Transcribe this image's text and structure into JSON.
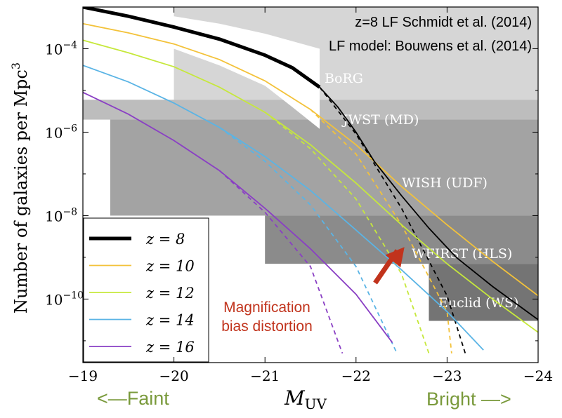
{
  "chart_data": {
    "type": "line",
    "title_lines": [
      "z=8 LF Schmidt et al. (2014)",
      "LF model: Bouwens et al. (2014)"
    ],
    "xlabel_main": "M",
    "xlabel_sub": "UV",
    "ylabel": "Number of galaxies per Mpc",
    "ylabel_sup": "3",
    "x_range": [
      -19,
      -24
    ],
    "y_scale": "log",
    "y_range": [
      3e-12,
      0.001
    ],
    "x_ticks": [
      {
        "value": -19,
        "label": "−19"
      },
      {
        "value": -20,
        "label": "−20"
      },
      {
        "value": -21,
        "label": "−21"
      },
      {
        "value": -22,
        "label": "−22"
      },
      {
        "value": -23,
        "label": "−23"
      },
      {
        "value": -24,
        "label": "−24"
      }
    ],
    "y_ticks": [
      {
        "value": 0.0001,
        "base": "10",
        "exp": "−4"
      },
      {
        "value": 1e-06,
        "base": "10",
        "exp": "−6"
      },
      {
        "value": 1e-08,
        "base": "10",
        "exp": "−8"
      },
      {
        "value": 1e-10,
        "base": "10",
        "exp": "−10"
      }
    ],
    "survey_regions": [
      {
        "label": "BoRG",
        "x": [
          -20.0,
          -24.0
        ],
        "y": [
          6e-06,
          0.001
        ],
        "color": "#d6d6d6",
        "label_color": "#ffffff"
      },
      {
        "label": "JWST (MD)",
        "x": [
          -19.0,
          -24.0
        ],
        "y": [
          2e-06,
          6e-06
        ],
        "color": "#bdbdbd",
        "label_color": "#ffffff"
      },
      {
        "label": "WISH (UDF)",
        "x": [
          -19.3,
          -24.0
        ],
        "y": [
          1e-08,
          2e-06
        ],
        "color": "#a3a3a3",
        "label_color": "#ffffff"
      },
      {
        "label": "WFIRST (HLS)",
        "x": [
          -21.0,
          -24.0
        ],
        "y": [
          7e-10,
          1e-08
        ],
        "color": "#8b8b8b",
        "label_color": "#ffffff"
      },
      {
        "label": "Euclid (WS)",
        "x": [
          -22.8,
          -24.0
        ],
        "y": [
          3e-11,
          7e-10
        ],
        "color": "#747474",
        "label_color": "#ffffff"
      }
    ],
    "series": [
      {
        "name": "z = 8",
        "color": "#000000",
        "x": [
          -19.0,
          -19.5,
          -20.0,
          -20.5,
          -21.0,
          -21.3,
          -21.6,
          -21.8,
          -22.0,
          -22.2,
          -22.5,
          -22.8,
          -23.1,
          -23.5,
          -24.0
        ],
        "y": [
          0.001,
          0.0006,
          0.00033,
          0.00017,
          7e-05,
          3.5e-05,
          1.2e-05,
          4e-06,
          1e-06,
          2e-07,
          3e-08,
          5e-09,
          1e-09,
          2e-10,
          3.2e-11
        ]
      },
      {
        "name": "z = 10",
        "color": "#f3c23a",
        "x": [
          -19.0,
          -19.5,
          -20.0,
          -20.5,
          -21.0,
          -21.5,
          -22.0,
          -22.5,
          -23.0,
          -23.5,
          -24.0
        ],
        "y": [
          0.0004,
          0.00024,
          0.00013,
          5.5e-05,
          1.7e-05,
          3.5e-06,
          5e-07,
          5e-08,
          6e-09,
          8e-10,
          1.2e-10
        ]
      },
      {
        "name": "z = 12",
        "color": "#c6e83b",
        "x": [
          -19.0,
          -19.5,
          -20.0,
          -20.5,
          -21.0,
          -21.5,
          -22.0,
          -22.5,
          -23.0,
          -23.5,
          -24.0
        ],
        "y": [
          0.00016,
          8e-05,
          3.7e-05,
          1.2e-05,
          3e-06,
          5e-07,
          6e-08,
          6e-09,
          7e-10,
          1e-10,
          1.6e-11
        ]
      },
      {
        "name": "z = 14",
        "color": "#5ab4e5",
        "x": [
          -19.0,
          -19.5,
          -20.0,
          -20.5,
          -21.0,
          -21.5,
          -22.0,
          -22.5,
          -23.0,
          -23.4
        ],
        "y": [
          4e-05,
          1.6e-05,
          5e-06,
          1.3e-06,
          2.6e-07,
          4e-08,
          4.5e-09,
          5e-10,
          5e-11,
          6e-12
        ]
      },
      {
        "name": "z = 16",
        "color": "#8a3fc4",
        "x": [
          -19.0,
          -19.5,
          -20.0,
          -20.5,
          -21.0,
          -21.5,
          -22.0,
          -22.4
        ],
        "y": [
          9e-06,
          2.7e-06,
          6.3e-07,
          1.2e-07,
          1.5e-08,
          1.6e-09,
          1.3e-10,
          9e-12
        ]
      }
    ],
    "dashed_series": [
      {
        "color": "#000000",
        "x": [
          -21.6,
          -22.0,
          -22.5,
          -23.0,
          -23.2
        ],
        "y": [
          1.2e-05,
          9e-07,
          1.5e-08,
          1.2e-10,
          5e-12
        ]
      },
      {
        "color": "#f3c23a",
        "x": [
          -21.5,
          -22.0,
          -22.5,
          -23.0,
          -23.05
        ],
        "y": [
          3.5e-06,
          3e-07,
          6e-09,
          5e-11,
          5e-12
        ]
      },
      {
        "color": "#c6e83b",
        "x": [
          -21.0,
          -21.5,
          -22.0,
          -22.5,
          -22.8
        ],
        "y": [
          3e-06,
          4e-07,
          2.5e-08,
          4e-10,
          5e-12
        ]
      },
      {
        "color": "#5ab4e5",
        "x": [
          -20.5,
          -21.0,
          -21.5,
          -22.0,
          -22.45
        ],
        "y": [
          1.3e-06,
          2e-07,
          1.8e-08,
          6e-10,
          5e-12
        ]
      },
      {
        "color": "#8a3fc4",
        "x": [
          -20.5,
          -21.0,
          -21.5,
          -21.85
        ],
        "y": [
          1.2e-07,
          1.2e-08,
          6e-10,
          5e-12
        ]
      }
    ],
    "bright_band": {
      "color": "#ffffff",
      "x_upper": [
        -19.0,
        -19.5,
        -20.0,
        -20.5,
        -21.0,
        -21.6
      ],
      "y_upper": [
        0.001,
        0.0008,
        0.0006,
        0.0004,
        0.00023,
        0.0001
      ],
      "x_lower": [
        -21.6,
        -21.3,
        -21.0,
        -20.5,
        -20.0,
        -19.5,
        -19.0
      ],
      "y_lower": [
        1.2e-06,
        4e-06,
        1.3e-05,
        4e-05,
        0.0001,
        0.0002,
        0.00035
      ]
    },
    "legend": {
      "position": "lower-left",
      "entries": [
        "z = 8",
        "z = 10",
        "z = 12",
        "z = 14",
        "z = 16"
      ]
    },
    "annotation": {
      "lines": [
        "Magnification",
        "bias distortion"
      ],
      "color": "#c1331c",
      "arrow_from": [
        -21.4,
        2e-10
      ],
      "arrow_to": [
        -22.3,
        1.2e-09
      ]
    },
    "faint_label": "<—Faint",
    "bright_label": "Bright —>",
    "direction_label_color": "#7a9a3c"
  }
}
